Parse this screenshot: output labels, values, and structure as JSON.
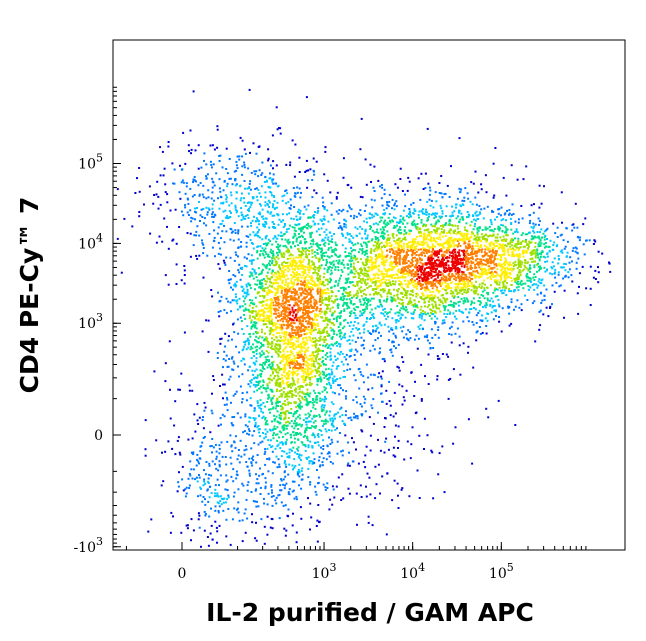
{
  "chart_data": {
    "type": "scatter",
    "style": "density-dot-plot",
    "xlabel": "IL-2 purified / GAM APC",
    "ylabel": "CD4 PE-Cy™ 7",
    "x_scale": "biexponential",
    "y_scale": "biexponential",
    "x_range": [
      -300,
      200000
    ],
    "y_range": [
      -2000,
      250000
    ],
    "x_ticks": [
      {
        "value": 0,
        "base": "0",
        "exp": ""
      },
      {
        "value": 1000,
        "base": "10",
        "exp": "3"
      },
      {
        "value": 10000,
        "base": "10",
        "exp": "4"
      },
      {
        "value": 100000,
        "base": "10",
        "exp": "5"
      }
    ],
    "y_ticks": [
      {
        "value": -1000,
        "base": "-10",
        "exp": "3"
      },
      {
        "value": 0,
        "base": "0",
        "exp": ""
      },
      {
        "value": 1000,
        "base": "10",
        "exp": "3"
      },
      {
        "value": 10000,
        "base": "10",
        "exp": "4"
      },
      {
        "value": 100000,
        "base": "10",
        "exp": "5"
      }
    ],
    "populations": [
      {
        "center_x": 400,
        "center_y": 1600,
        "relative_density": 1.0
      },
      {
        "center_x": 20000,
        "center_y": 6000,
        "relative_density": 1.0
      }
    ],
    "density_colors": [
      "#0000cc",
      "#0077ff",
      "#00c8ff",
      "#00e08a",
      "#9fe000",
      "#ffee00",
      "#ff7f00",
      "#ee0000"
    ],
    "grid": false
  }
}
